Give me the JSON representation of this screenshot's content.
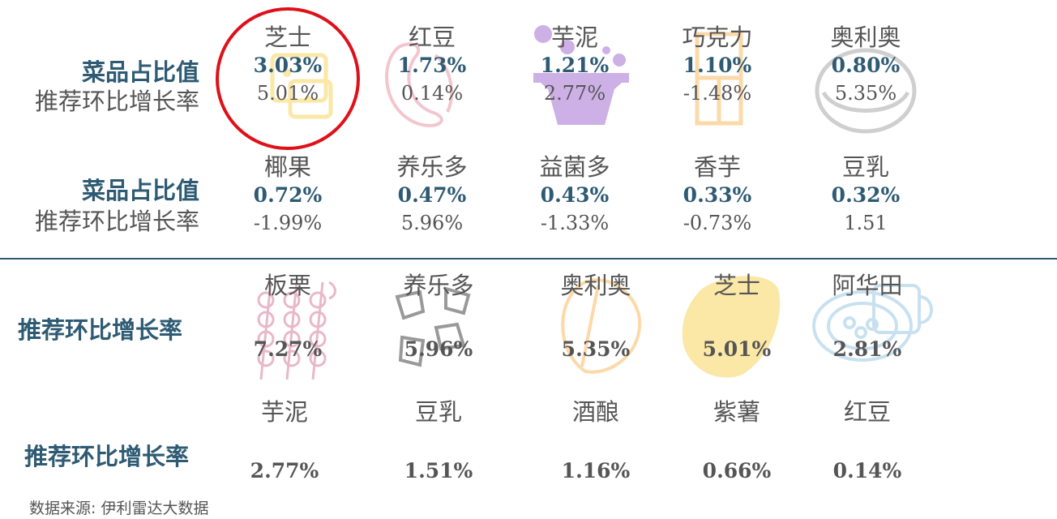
{
  "section_top": {
    "row1": {
      "label_share": "菜品占比值",
      "label_growth": "推荐环比增长率",
      "items": [
        {
          "name": "芝士",
          "share": "3.03%",
          "growth": "5.01%"
        },
        {
          "name": "红豆",
          "share": "1.73%",
          "growth": "0.14%"
        },
        {
          "name": "芋泥",
          "share": "1.21%",
          "growth": "2.77%"
        },
        {
          "name": "巧克力",
          "share": "1.10%",
          "growth": "-1.48%"
        },
        {
          "name": "奥利奥",
          "share": "0.80%",
          "growth": "5.35%"
        }
      ]
    },
    "row2": {
      "label_share": "菜品占比值",
      "label_growth": "推荐环比增长率",
      "items": [
        {
          "name": "椰果",
          "share": "0.72%",
          "growth": "-1.99%"
        },
        {
          "name": "养乐多",
          "share": "0.47%",
          "growth": "5.96%"
        },
        {
          "name": "益菌多",
          "share": "0.43%",
          "growth": "-1.33%"
        },
        {
          "name": "香芋",
          "share": "0.33%",
          "growth": "-0.73%"
        },
        {
          "name": "豆乳",
          "share": "0.32%",
          "growth": "1.51"
        }
      ]
    }
  },
  "section_bottom": {
    "row3": {
      "label": "推荐环比增长率",
      "items": [
        {
          "name": "板栗",
          "growth": "7.27%"
        },
        {
          "name": "养乐多",
          "growth": "5.96%"
        },
        {
          "name": "奥利奥",
          "growth": "5.35%"
        },
        {
          "name": "芝士",
          "growth": "5.01%"
        },
        {
          "name": "阿华田",
          "growth": "2.81%"
        }
      ]
    },
    "row4": {
      "label": "推荐环比增长率",
      "items": [
        {
          "name": "芋泥",
          "growth": "2.77%"
        },
        {
          "name": "豆乳",
          "growth": "1.51%"
        },
        {
          "name": "酒酿",
          "growth": "1.16%"
        },
        {
          "name": "紫薯",
          "growth": "0.66%"
        },
        {
          "name": "红豆",
          "growth": "0.14%"
        }
      ]
    }
  },
  "source": "数据来源: 伊利雷达大数据",
  "colors": {
    "accent": "#2E5B73",
    "text": "#555555",
    "highlight_circle": "#E0101A",
    "icon_cheese": "#FBE7A6",
    "icon_bean": "#F3C6CF",
    "icon_taro": "#CDB0E6",
    "icon_chocolate": "#FCD9A8",
    "icon_oreo": "#CFCFCF",
    "icon_chestnut": "#E9B8C8",
    "icon_yakult": "#999999",
    "icon_ovaltine": "#C8E1F0"
  },
  "icons": [
    "cheese-icon",
    "red-bean-icon",
    "taro-icon",
    "chocolate-icon",
    "oreo-icon",
    "chestnut-skewer-icon",
    "yakult-icon",
    "oreo-half-icon",
    "cheese-wedge-icon",
    "ovaltine-cup-icon"
  ]
}
